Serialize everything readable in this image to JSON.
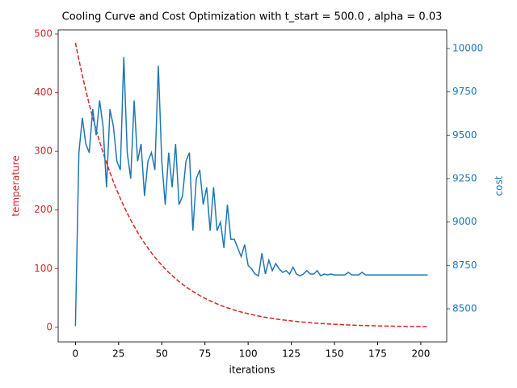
{
  "chart_data": {
    "type": "line",
    "title": "Cooling Curve and Cost Optimization with t_start = 500.0 , alpha = 0.03",
    "xlabel": "iterations",
    "ylabel": "temperature",
    "y2label": "cost",
    "x": [
      0,
      2,
      4,
      6,
      8,
      10,
      12,
      14,
      16,
      18,
      20,
      22,
      24,
      26,
      28,
      30,
      32,
      34,
      36,
      38,
      40,
      42,
      44,
      46,
      48,
      50,
      52,
      54,
      56,
      58,
      60,
      62,
      64,
      66,
      68,
      70,
      72,
      74,
      76,
      78,
      80,
      82,
      84,
      86,
      88,
      90,
      92,
      94,
      96,
      98,
      100,
      102,
      104,
      106,
      108,
      110,
      112,
      114,
      116,
      118,
      120,
      122,
      124,
      126,
      128,
      130,
      132,
      134,
      136,
      138,
      140,
      142,
      144,
      146,
      148,
      150,
      152,
      154,
      156,
      158,
      160,
      162,
      164,
      166,
      168,
      170,
      172,
      174,
      176,
      178,
      180,
      182,
      184,
      186,
      188,
      190,
      192,
      194,
      196,
      198,
      200,
      202,
      204
    ],
    "series": [
      {
        "color": "#d62728",
        "dashed": true,
        "values": [
          485.0,
          456.3,
          429.4,
          404.0,
          380.1,
          357.7,
          336.5,
          316.6,
          297.9,
          280.3,
          263.8,
          248.2,
          233.5,
          219.7,
          206.7,
          194.5,
          183.0,
          172.2,
          162.0,
          152.5,
          143.4,
          135.0,
          127.0,
          119.5,
          112.4,
          105.8,
          99.5,
          93.6,
          88.1,
          82.9,
          78.0,
          73.4,
          69.1,
          65.0,
          61.1,
          57.5,
          54.1,
          50.9,
          47.9,
          45.1,
          42.4,
          39.9,
          37.5,
          35.3,
          33.2,
          31.3,
          29.4,
          27.7,
          26.0,
          24.5,
          23.1,
          21.7,
          20.4,
          19.2,
          18.1,
          17.0,
          16.0,
          15.1,
          14.2,
          13.3,
          12.6,
          11.8,
          11.1,
          10.5,
          9.9,
          9.3,
          8.7,
          8.2,
          7.7,
          7.3,
          6.8,
          6.4,
          6.1,
          5.7,
          5.4,
          5.1,
          4.8,
          4.5,
          4.2,
          4.0,
          3.7,
          3.5,
          3.3,
          3.1,
          2.9,
          2.8,
          2.6,
          2.5,
          2.3,
          2.2,
          2.0,
          1.9,
          1.8,
          1.7,
          1.6,
          1.5,
          1.4,
          1.3,
          1.3,
          1.2,
          1.1,
          1.0,
          1.0
        ]
      },
      {
        "color": "#1f77b4",
        "axis": "y2",
        "values": [
          8400,
          9400,
          9600,
          9450,
          9400,
          9650,
          9500,
          9700,
          9550,
          9200,
          9650,
          9550,
          9350,
          9300,
          9950,
          9400,
          9250,
          9700,
          9350,
          9450,
          9150,
          9350,
          9400,
          9300,
          9900,
          9350,
          9100,
          9400,
          9200,
          9450,
          9100,
          9150,
          9350,
          9400,
          8950,
          9250,
          9300,
          9100,
          9200,
          8950,
          9200,
          8950,
          9000,
          8850,
          9100,
          8900,
          8900,
          8850,
          8800,
          8870,
          8750,
          8730,
          8700,
          8690,
          8820,
          8700,
          8780,
          8720,
          8760,
          8730,
          8710,
          8720,
          8700,
          8740,
          8700,
          8690,
          8700,
          8720,
          8700,
          8700,
          8720,
          8690,
          8700,
          8695,
          8700,
          8695,
          8695,
          8695,
          8695,
          8710,
          8695,
          8695,
          8695,
          8710,
          8695,
          8695,
          8695,
          8695,
          8695,
          8695,
          8695,
          8695,
          8695,
          8695,
          8695,
          8695,
          8695,
          8695,
          8695,
          8695,
          8695,
          8695,
          8695
        ]
      }
    ],
    "xlim": [
      -10,
      215
    ],
    "xticks": [
      0,
      25,
      50,
      75,
      100,
      125,
      150,
      175,
      200
    ],
    "ylim": [
      -25,
      507
    ],
    "yticks": [
      0,
      100,
      200,
      300,
      400,
      500
    ],
    "y2lim": [
      8309,
      10107
    ],
    "y2ticks": [
      8500,
      8750,
      9000,
      9250,
      9500,
      9750,
      10000
    ]
  }
}
